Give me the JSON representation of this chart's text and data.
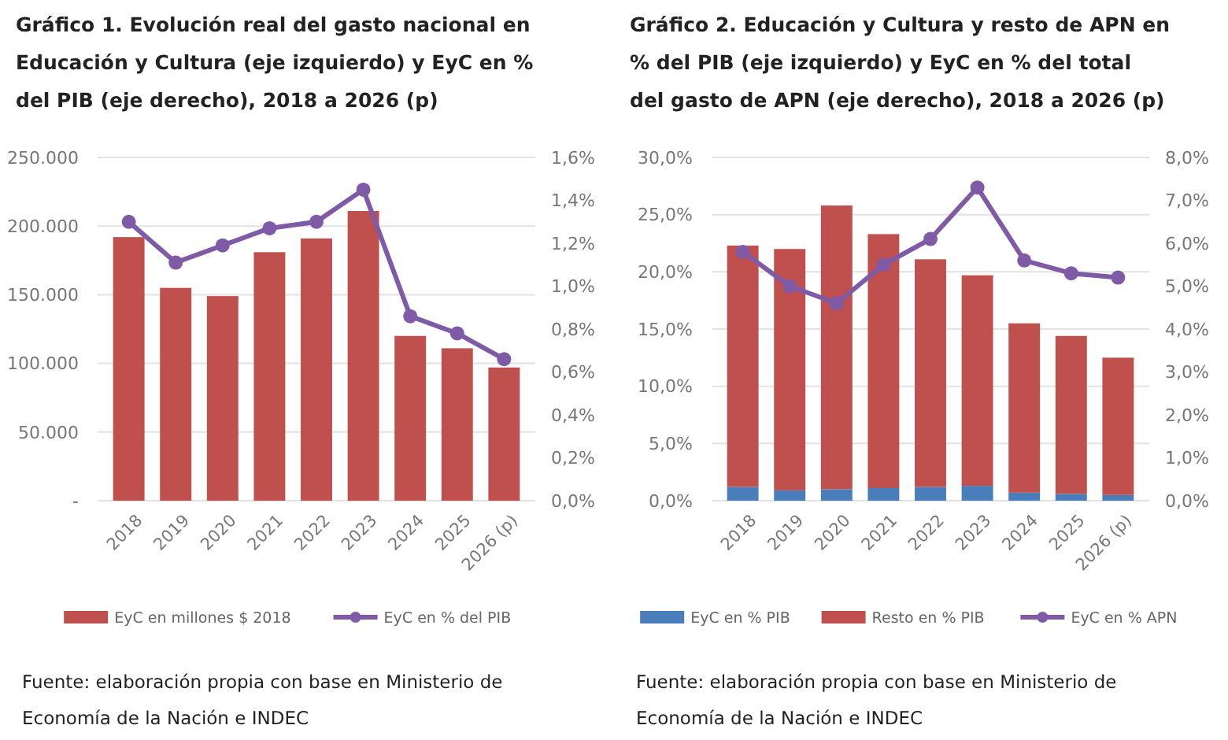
{
  "chart_data": [
    {
      "type": "bar",
      "title": "Gráfico 1. Evolución real del gasto nacional en Educación y Cultura (eje izquierdo) y EyC en % del PIB (eje derecho), 2018 a 2026 (p)",
      "categories": [
        "2018",
        "2019",
        "2020",
        "2021",
        "2022",
        "2023",
        "2024",
        "2025",
        "2026 (p)"
      ],
      "series": [
        {
          "name": "EyC en millones $ 2018",
          "color": "#c0504d",
          "values": [
            192000,
            155000,
            149000,
            181000,
            191000,
            211000,
            120000,
            111000,
            97000
          ]
        },
        {
          "name": "EyC en % del PIB",
          "type": "line",
          "axis": "y2",
          "color": "#7f5aa7",
          "values": [
            1.3,
            1.11,
            1.19,
            1.27,
            1.3,
            1.45,
            0.86,
            0.78,
            0.66
          ]
        }
      ],
      "ylim": [
        0,
        250000
      ],
      "yticks": [
        {
          "value": 0,
          "label": "-"
        },
        {
          "value": 50000,
          "label": "50.000"
        },
        {
          "value": 100000,
          "label": "100.000"
        },
        {
          "value": 150000,
          "label": "150.000"
        },
        {
          "value": 200000,
          "label": "200.000"
        },
        {
          "value": 250000,
          "label": "250.000"
        }
      ],
      "y2lim": [
        0,
        1.6
      ],
      "y2ticks": [
        {
          "value": 0,
          "label": "0,0%"
        },
        {
          "value": 0.2,
          "label": "0,2%"
        },
        {
          "value": 0.4,
          "label": "0,4%"
        },
        {
          "value": 0.6,
          "label": "0,6%"
        },
        {
          "value": 0.8,
          "label": "0,8%"
        },
        {
          "value": 1.0,
          "label": "1,0%"
        },
        {
          "value": 1.2,
          "label": "1,2%"
        },
        {
          "value": 1.4,
          "label": "1,4%"
        },
        {
          "value": 1.6,
          "label": "1,6%"
        }
      ],
      "grid": "y",
      "legend": "bottom",
      "marker": "circle",
      "annotations": [
        "Fuente: elaboración propia con base en Ministerio de Economía de la Nación e INDEC"
      ]
    },
    {
      "type": "bar",
      "title": "Gráfico 2. Educación y Cultura y resto de APN en % del PIB (eje izquierdo) y EyC en % del total del gasto de APN (eje derecho), 2018 a 2026 (p)",
      "categories": [
        "2018",
        "2019",
        "2020",
        "2021",
        "2022",
        "2023",
        "2024",
        "2025",
        "2026 (p)"
      ],
      "stacked": true,
      "series": [
        {
          "name": "EyC en % PIB",
          "color": "#4a7ebb",
          "values": [
            1.2,
            0.9,
            1.0,
            1.1,
            1.2,
            1.3,
            0.7,
            0.6,
            0.5
          ]
        },
        {
          "name": "Resto en % PIB",
          "color": "#c0504d",
          "values": [
            21.1,
            21.1,
            24.8,
            22.2,
            19.9,
            18.4,
            14.8,
            13.8,
            12.0
          ]
        },
        {
          "name": "EyC en % APN",
          "type": "line",
          "axis": "y2",
          "color": "#7f5aa7",
          "values": [
            5.8,
            5.0,
            4.6,
            5.5,
            6.1,
            7.3,
            5.6,
            5.3,
            5.2
          ]
        }
      ],
      "ylim": [
        0,
        30
      ],
      "yticks": [
        {
          "value": 0,
          "label": "0,0%"
        },
        {
          "value": 5,
          "label": "5,0%"
        },
        {
          "value": 10,
          "label": "10,0%"
        },
        {
          "value": 15,
          "label": "15,0%"
        },
        {
          "value": 20,
          "label": "20,0%"
        },
        {
          "value": 25,
          "label": "25,0%"
        },
        {
          "value": 30,
          "label": "30,0%"
        }
      ],
      "y2lim": [
        0,
        8
      ],
      "y2ticks": [
        {
          "value": 0,
          "label": "0,0%"
        },
        {
          "value": 1,
          "label": "1,0%"
        },
        {
          "value": 2,
          "label": "2,0%"
        },
        {
          "value": 3,
          "label": "3,0%"
        },
        {
          "value": 4,
          "label": "4,0%"
        },
        {
          "value": 5,
          "label": "5,0%"
        },
        {
          "value": 6,
          "label": "6,0%"
        },
        {
          "value": 7,
          "label": "7,0%"
        },
        {
          "value": 8,
          "label": "8,0%"
        }
      ],
      "grid": "y",
      "legend": "bottom",
      "marker": "circle",
      "annotations": [
        "Fuente: elaboración propia con base en Ministerio de Economía de la Nación e INDEC"
      ]
    }
  ]
}
